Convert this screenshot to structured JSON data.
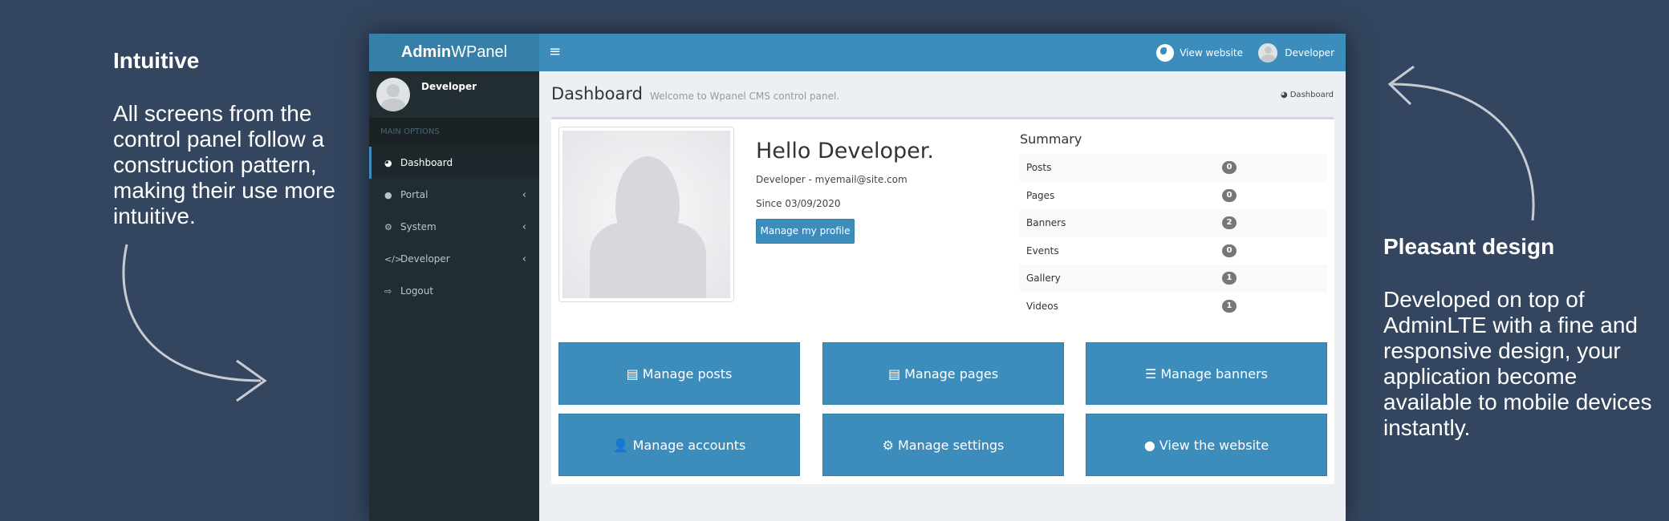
{
  "left_text": {
    "title": "Intuitive",
    "body": "All screens from the control panel follow a construction pattern, making their use more intuitive."
  },
  "right_text": {
    "title": "Pleasant design",
    "body": "Developed on top of AdminLTE with a fine and responsive design, your application become available to mobile devices instantly."
  },
  "app": {
    "logo_bold": "Admin",
    "logo_rest": "WPanel",
    "toggle_icon": "≡",
    "view_website": "View website",
    "user": "Developer"
  },
  "sidebar": {
    "user": "Developer",
    "section": "MAIN OPTIONS",
    "items": [
      {
        "label": "Dashboard",
        "icon": "◕"
      },
      {
        "label": "Portal",
        "icon": "●"
      },
      {
        "label": "System",
        "icon": "⚙"
      },
      {
        "label": "Developer",
        "icon": "</>"
      },
      {
        "label": "Logout",
        "icon": "⇨"
      }
    ]
  },
  "content": {
    "title": "Dashboard",
    "subtitle": "Welcome to Wpanel CMS control panel.",
    "breadcrumb": "Dashboard",
    "hello": "Hello Developer.",
    "email": "Developer - myemail@site.com",
    "since": "Since 03/09/2020",
    "manage_profile": "Manage my profile",
    "summary_title": "Summary",
    "summary": [
      {
        "label": "Posts",
        "count": "0"
      },
      {
        "label": "Pages",
        "count": "0"
      },
      {
        "label": "Banners",
        "count": "2"
      },
      {
        "label": "Events",
        "count": "0"
      },
      {
        "label": "Gallery",
        "count": "1"
      },
      {
        "label": "Videos",
        "count": "1"
      }
    ],
    "tiles": [
      {
        "label": "Manage posts",
        "icon": "▤"
      },
      {
        "label": "Manage pages",
        "icon": "▤"
      },
      {
        "label": "Manage banners",
        "icon": "☰"
      },
      {
        "label": "Manage accounts",
        "icon": "👤"
      },
      {
        "label": "Manage settings",
        "icon": "⚙"
      },
      {
        "label": "View the website",
        "icon": "●"
      }
    ]
  },
  "colors": {
    "accent": "#3c8dbc",
    "sidebar": "#222d32",
    "background": "#34465f"
  }
}
